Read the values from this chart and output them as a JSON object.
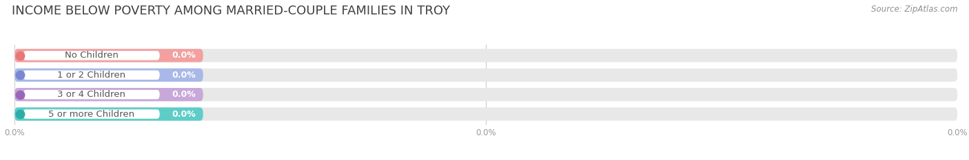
{
  "title": "INCOME BELOW POVERTY AMONG MARRIED-COUPLE FAMILIES IN TROY",
  "source": "Source: ZipAtlas.com",
  "categories": [
    "No Children",
    "1 or 2 Children",
    "3 or 4 Children",
    "5 or more Children"
  ],
  "values": [
    0.0,
    0.0,
    0.0,
    0.0
  ],
  "bar_colors": [
    "#f2a0a0",
    "#a8b8e8",
    "#c8a8d8",
    "#5ecdc8"
  ],
  "dot_colors": [
    "#e87878",
    "#7888d0",
    "#9868b8",
    "#2eada8"
  ],
  "bg_bar_color": "#e8e8e8",
  "label_bg_color": "#ffffff",
  "title_color": "#404040",
  "source_color": "#909090",
  "value_label_color": "#ffffff",
  "tick_label_color": "#999999",
  "xlim_max": 100,
  "min_bar_display": 20,
  "title_fontsize": 13,
  "source_fontsize": 8.5,
  "cat_label_fontsize": 9.5,
  "val_label_fontsize": 9,
  "tick_fontsize": 8.5,
  "background_color": "#ffffff",
  "grid_color": "#cccccc",
  "xtick_positions": [
    0,
    50,
    100
  ],
  "xtick_labels": [
    "0.0%",
    "0.0%",
    "0.0%"
  ]
}
